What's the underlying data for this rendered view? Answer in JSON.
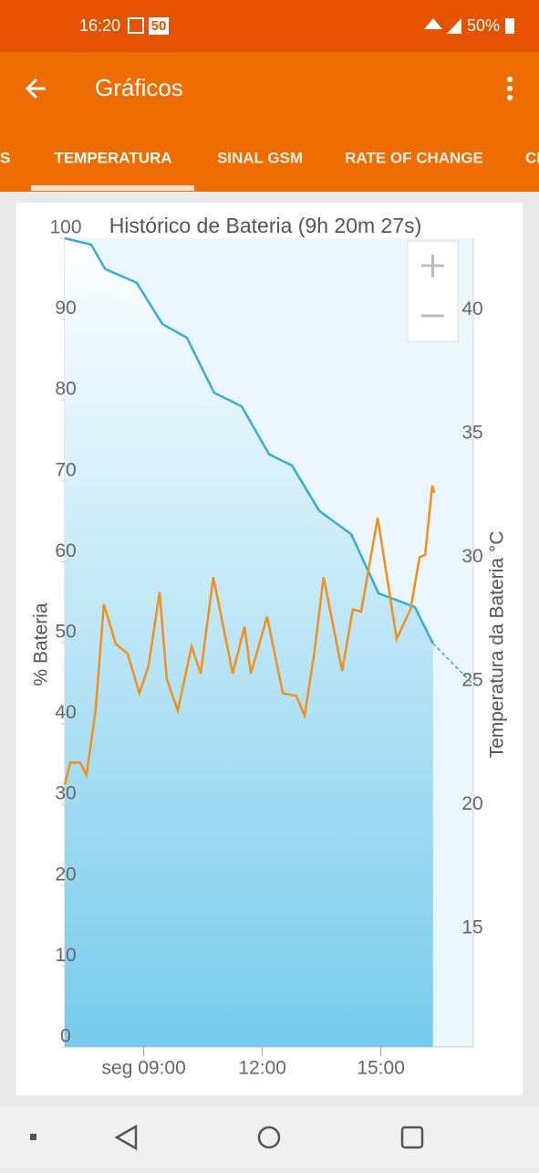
{
  "status_bar": {
    "time": "16:20",
    "badge": "50",
    "battery": "50%"
  },
  "app_bar": {
    "title": "Gráficos"
  },
  "tabs": [
    "S",
    "TEMPERATURA",
    "SINAL GSM",
    "RATE OF CHANGE",
    "CI"
  ],
  "chart_data": {
    "type": "line",
    "title": "Histórico de Bateria (9h 20m 27s)",
    "y_label": "% Bateria",
    "y2_label": "Temperatura da Bateria °C",
    "xlim": [
      7.0,
      17.34
    ],
    "xticks": [
      {
        "value": 9,
        "label": "seg 09:00"
      },
      {
        "value": 12,
        "label": "12:00"
      },
      {
        "value": 15,
        "label": "15:00"
      }
    ],
    "ylim": [
      0,
      100
    ],
    "yticks": [
      0,
      10,
      20,
      30,
      40,
      50,
      60,
      70,
      80,
      90,
      100
    ],
    "y2lim": [
      10.2,
      42.9
    ],
    "y2ticks": [
      15,
      20,
      25,
      30,
      35,
      40
    ],
    "series": [
      {
        "color": "#36acd8",
        "area": true,
        "x": [
          7.0,
          7.67,
          8.02,
          8.82,
          9.47,
          10.09,
          10.78,
          11.48,
          12.17,
          12.75,
          13.44,
          14.25,
          14.94,
          15.86,
          16.32
        ],
        "values": [
          100,
          99.2,
          96.2,
          94.5,
          89.4,
          87.7,
          80.9,
          79.2,
          73.3,
          71.9,
          66.3,
          63.4,
          56.1,
          54.4,
          49.9
        ]
      },
      {
        "color": "#36acd8",
        "dashed": true,
        "x": [
          16.32,
          17.34
        ],
        "values": [
          49.9,
          44.8
        ]
      },
      {
        "color": "#f0901e",
        "axis": "y2",
        "x": [
          7.0,
          7.14,
          7.39,
          7.55,
          7.78,
          7.99,
          8.29,
          8.59,
          8.89,
          9.12,
          9.4,
          9.58,
          9.86,
          10.21,
          10.44,
          10.76,
          11.25,
          11.55,
          11.71,
          12.12,
          12.52,
          12.86,
          13.07,
          13.32,
          13.55,
          14.02,
          14.29,
          14.5,
          14.92,
          15.4,
          15.75,
          15.98,
          16.12,
          16.3,
          16.35
        ],
        "values": [
          20.8,
          21.7,
          21.7,
          21.2,
          23.8,
          28.1,
          26.5,
          26.1,
          24.5,
          25.6,
          28.6,
          25.1,
          23.8,
          26.4,
          25.3,
          29.2,
          25.3,
          27.2,
          25.3,
          27.6,
          24.5,
          24.4,
          23.6,
          26.2,
          29.2,
          25.4,
          27.9,
          27.8,
          31.6,
          26.7,
          27.9,
          30.0,
          30.1,
          32.9,
          32.6
        ]
      }
    ]
  }
}
